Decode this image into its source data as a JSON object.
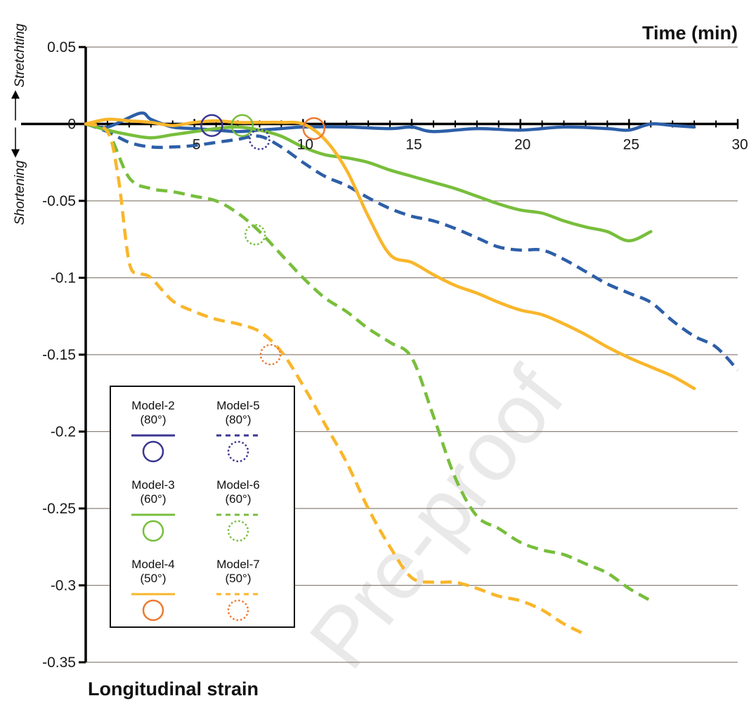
{
  "chart_data": {
    "type": "line",
    "title": "",
    "xlabel": "Time (min)",
    "ylabel": "Longitudinal strain",
    "xlim": [
      0,
      30
    ],
    "ylim": [
      -0.35,
      0.05
    ],
    "x_tick_labels": [
      "5",
      "10",
      "15",
      "20",
      "25",
      "30"
    ],
    "x_tick_values": [
      5,
      10,
      15,
      20,
      25,
      30
    ],
    "y_tick_labels": [
      "0.05",
      "0",
      "-0.05",
      "-0.1",
      "-0.15",
      "-0.2",
      "-0.25",
      "-0.3",
      "-0.35"
    ],
    "y_tick_values": [
      0.05,
      0,
      -0.05,
      -0.1,
      -0.15,
      -0.2,
      -0.25,
      -0.3,
      -0.35
    ],
    "grid": true,
    "upper_direction_label": "Stretchting",
    "lower_direction_label": "Shortening",
    "watermark": "Pre-proof",
    "series": [
      {
        "name": "Model-2 (80°)",
        "style": "solid",
        "color": "#2d5fa8",
        "x": [
          0,
          1,
          2.5,
          3,
          4,
          5,
          6,
          7,
          8,
          9,
          10,
          12,
          14,
          15,
          16,
          18,
          20,
          22,
          24,
          25,
          26,
          27,
          28
        ],
        "y": [
          0,
          -0.002,
          0.007,
          0.003,
          -0.002,
          -0.003,
          -0.004,
          -0.005,
          -0.004,
          -0.003,
          -0.002,
          -0.002,
          -0.003,
          -0.002,
          -0.005,
          -0.003,
          -0.004,
          -0.002,
          -0.003,
          -0.004,
          0,
          -0.001,
          -0.002
        ],
        "marker": {
          "x": 5.8,
          "y": -0.001,
          "style": "solid",
          "color": "#3b3791"
        }
      },
      {
        "name": "Model-5 (80°)",
        "style": "dashed",
        "color": "#2d5fa8",
        "x": [
          0,
          1,
          2,
          3,
          4,
          5,
          6,
          7,
          8,
          9,
          10,
          11,
          12,
          13,
          14,
          15,
          16,
          17,
          18,
          19,
          20,
          21,
          22,
          23,
          24,
          25,
          26,
          27,
          28,
          29,
          30
        ],
        "y": [
          0,
          -0.005,
          -0.012,
          -0.015,
          -0.015,
          -0.014,
          -0.012,
          -0.01,
          -0.008,
          -0.015,
          -0.025,
          -0.034,
          -0.04,
          -0.048,
          -0.055,
          -0.06,
          -0.063,
          -0.068,
          -0.074,
          -0.08,
          -0.082,
          -0.082,
          -0.088,
          -0.096,
          -0.104,
          -0.11,
          -0.116,
          -0.128,
          -0.138,
          -0.145,
          -0.16
        ],
        "marker": {
          "x": 8,
          "y": -0.01,
          "style": "dotted",
          "color": "#3b3791"
        }
      },
      {
        "name": "Model-3 (60°)",
        "style": "solid",
        "color": "#78be3c",
        "x": [
          0,
          1,
          2,
          3,
          4,
          5,
          6,
          7,
          8,
          9,
          10,
          11,
          12,
          13,
          14,
          15,
          16,
          17,
          18,
          19,
          20,
          21,
          22,
          23,
          24,
          25,
          26
        ],
        "y": [
          0,
          -0.004,
          -0.007,
          -0.009,
          -0.007,
          -0.005,
          -0.003,
          -0.002,
          -0.004,
          -0.008,
          -0.015,
          -0.02,
          -0.022,
          -0.025,
          -0.03,
          -0.034,
          -0.038,
          -0.042,
          -0.047,
          -0.052,
          -0.056,
          -0.058,
          -0.063,
          -0.067,
          -0.07,
          -0.076,
          -0.07
        ],
        "marker": {
          "x": 7.2,
          "y": -0.001,
          "style": "solid",
          "color": "#78be3c"
        }
      },
      {
        "name": "Model-6 (60°)",
        "style": "dashed",
        "color": "#78be3c",
        "x": [
          0,
          1,
          2,
          3,
          4,
          5,
          6,
          7,
          8,
          9,
          10,
          11,
          12,
          13,
          14,
          15,
          16,
          17,
          18,
          19,
          20,
          21,
          22,
          23,
          24,
          25,
          26
        ],
        "y": [
          0,
          -0.005,
          -0.035,
          -0.042,
          -0.044,
          -0.047,
          -0.05,
          -0.058,
          -0.07,
          -0.085,
          -0.1,
          -0.113,
          -0.122,
          -0.133,
          -0.142,
          -0.152,
          -0.19,
          -0.23,
          -0.255,
          -0.263,
          -0.272,
          -0.277,
          -0.28,
          -0.286,
          -0.292,
          -0.302,
          -0.31
        ],
        "marker": {
          "x": 7.8,
          "y": -0.072,
          "style": "dotted",
          "color": "#78be3c"
        }
      },
      {
        "name": "Model-4 (50°)",
        "style": "solid",
        "color": "#f9b62b",
        "x": [
          0,
          1,
          2,
          3,
          4,
          5,
          6,
          7,
          8,
          9,
          10,
          11,
          12,
          13,
          14,
          15,
          16,
          17,
          18,
          19,
          20,
          21,
          22,
          23,
          24,
          25,
          26,
          27,
          28
        ],
        "y": [
          0,
          0.003,
          0.002,
          0.001,
          -0.001,
          0.001,
          0.002,
          0.001,
          0.001,
          0.001,
          0,
          -0.01,
          -0.03,
          -0.06,
          -0.085,
          -0.09,
          -0.098,
          -0.105,
          -0.11,
          -0.116,
          -0.121,
          -0.124,
          -0.13,
          -0.137,
          -0.145,
          -0.152,
          -0.158,
          -0.164,
          -0.172
        ],
        "marker": {
          "x": 10.5,
          "y": -0.003,
          "style": "solid",
          "color": "#ed7a33"
        }
      },
      {
        "name": "Model-7 (50°)",
        "style": "dashed",
        "color": "#f9b62b",
        "x": [
          0,
          1,
          1.5,
          2,
          2.5,
          3,
          4,
          5,
          6,
          7,
          8,
          9,
          10,
          11,
          12,
          13,
          14,
          15,
          16,
          17,
          18,
          19,
          20,
          21,
          22,
          23
        ],
        "y": [
          0,
          -0.005,
          -0.035,
          -0.09,
          -0.097,
          -0.1,
          -0.115,
          -0.122,
          -0.127,
          -0.13,
          -0.135,
          -0.148,
          -0.17,
          -0.195,
          -0.22,
          -0.25,
          -0.275,
          -0.295,
          -0.298,
          -0.298,
          -0.302,
          -0.307,
          -0.31,
          -0.316,
          -0.325,
          -0.332
        ],
        "marker": {
          "x": 8.5,
          "y": -0.15,
          "style": "dotted",
          "color": "#ed7a33"
        }
      }
    ],
    "legend": {
      "placement": "lower-left",
      "entries": [
        {
          "label": "Model-2",
          "angle": "(80°)",
          "line_style": "solid",
          "line_color": "#3b3791",
          "marker_style": "solid",
          "marker_color": "#3b3791"
        },
        {
          "label": "Model-5",
          "angle": "(80°)",
          "line_style": "dashed",
          "line_color": "#3b3791",
          "marker_style": "dotted",
          "marker_color": "#3b3791"
        },
        {
          "label": "Model-3",
          "angle": "(60°)",
          "line_style": "solid",
          "line_color": "#78be3c",
          "marker_style": "solid",
          "marker_color": "#78be3c"
        },
        {
          "label": "Model-6",
          "angle": "(60°)",
          "line_style": "dashed",
          "line_color": "#78be3c",
          "marker_style": "dotted",
          "marker_color": "#78be3c"
        },
        {
          "label": "Model-4",
          "angle": "(50°)",
          "line_style": "solid",
          "line_color": "#f9b62b",
          "marker_style": "solid",
          "marker_color": "#ed7a33"
        },
        {
          "label": "Model-7",
          "angle": "(50°)",
          "line_style": "dashed",
          "line_color": "#f9b62b",
          "marker_style": "dotted",
          "marker_color": "#ed7a33"
        }
      ]
    }
  }
}
